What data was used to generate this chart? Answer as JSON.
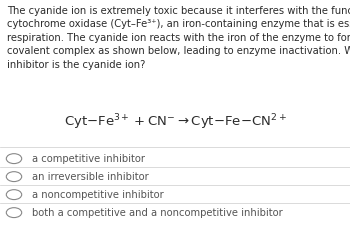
{
  "background_color": "#ffffff",
  "text_color": "#2c2c2c",
  "option_color": "#555555",
  "paragraph": "The cyanide ion is extremely toxic because it interferes with the functioning of\ncytochrome oxidase (Cyt–Fe³⁺), an iron-containing enzyme that is essential for cell\nrespiration. The cyanide ion reacts with the iron of the enzyme to form a very stable\ncovalent complex as shown below, leading to enzyme inactivation. What type of\ninhibitor is the cyanide ion?",
  "options": [
    "a competitive inhibitor",
    "an irreversible inhibitor",
    "a noncompetitive inhibitor",
    "both a competitive and a noncompetitive inhibitor"
  ],
  "divider_color": "#cccccc",
  "circle_color": "#888888",
  "para_fontsize": 7.2,
  "eq_fontsize": 9.5,
  "option_fontsize": 7.2
}
